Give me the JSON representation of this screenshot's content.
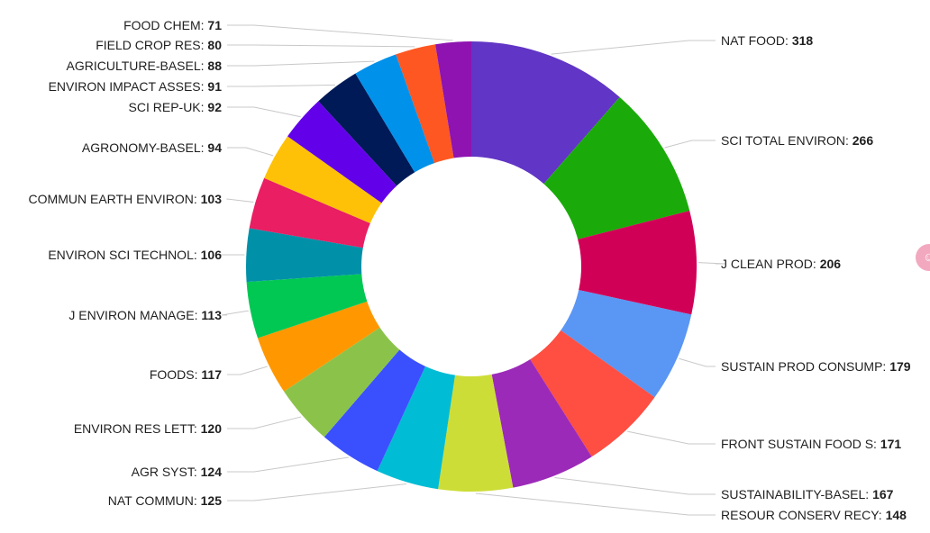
{
  "chart_data": {
    "type": "pie",
    "donut": true,
    "legend": "none",
    "series": [
      {
        "label": "NAT FOOD",
        "value": 318,
        "color": "#6135c5"
      },
      {
        "label": "SCI TOTAL ENVIRON",
        "value": 266,
        "color": "#1aab0a"
      },
      {
        "label": "J CLEAN PROD",
        "value": 206,
        "color": "#d10057"
      },
      {
        "label": "SUSTAIN PROD CONSUMP",
        "value": 179,
        "color": "#5a96f3"
      },
      {
        "label": "FRONT SUSTAIN FOOD S",
        "value": 171,
        "color": "#ff4e42"
      },
      {
        "label": "SUSTAINABILITY-BASEL",
        "value": 167,
        "color": "#9c2ab8"
      },
      {
        "label": "RESOUR CONSERV RECY",
        "value": 148,
        "color": "#cddd37"
      },
      {
        "label": "NAT COMMUN",
        "value": 125,
        "color": "#00bcd4"
      },
      {
        "label": "AGR SYST",
        "value": 124,
        "color": "#3a50ff"
      },
      {
        "label": "ENVIRON RES LETT",
        "value": 120,
        "color": "#8bc34a"
      },
      {
        "label": "FOODS",
        "value": 117,
        "color": "#ff9800"
      },
      {
        "label": "J ENVIRON MANAGE",
        "value": 113,
        "color": "#00c853"
      },
      {
        "label": "ENVIRON SCI TECHNOL",
        "value": 106,
        "color": "#0090a8"
      },
      {
        "label": "COMMUN EARTH ENVIRON",
        "value": 103,
        "color": "#e91e63"
      },
      {
        "label": "AGRONOMY-BASEL",
        "value": 94,
        "color": "#ffc107"
      },
      {
        "label": "SCI REP-UK",
        "value": 92,
        "color": "#6200ea"
      },
      {
        "label": "ENVIRON IMPACT ASSES",
        "value": 91,
        "color": "#001a57"
      },
      {
        "label": "AGRICULTURE-BASEL",
        "value": 88,
        "color": "#0091ea"
      },
      {
        "label": "FIELD CROP RES",
        "value": 80,
        "color": "#ff5722"
      },
      {
        "label": "FOOD CHEM",
        "value": 71,
        "color": "#8e13b0"
      }
    ]
  },
  "ui": {
    "badge_color": "#f2a9c0",
    "badge_icon": "partial-avatar-icon"
  }
}
